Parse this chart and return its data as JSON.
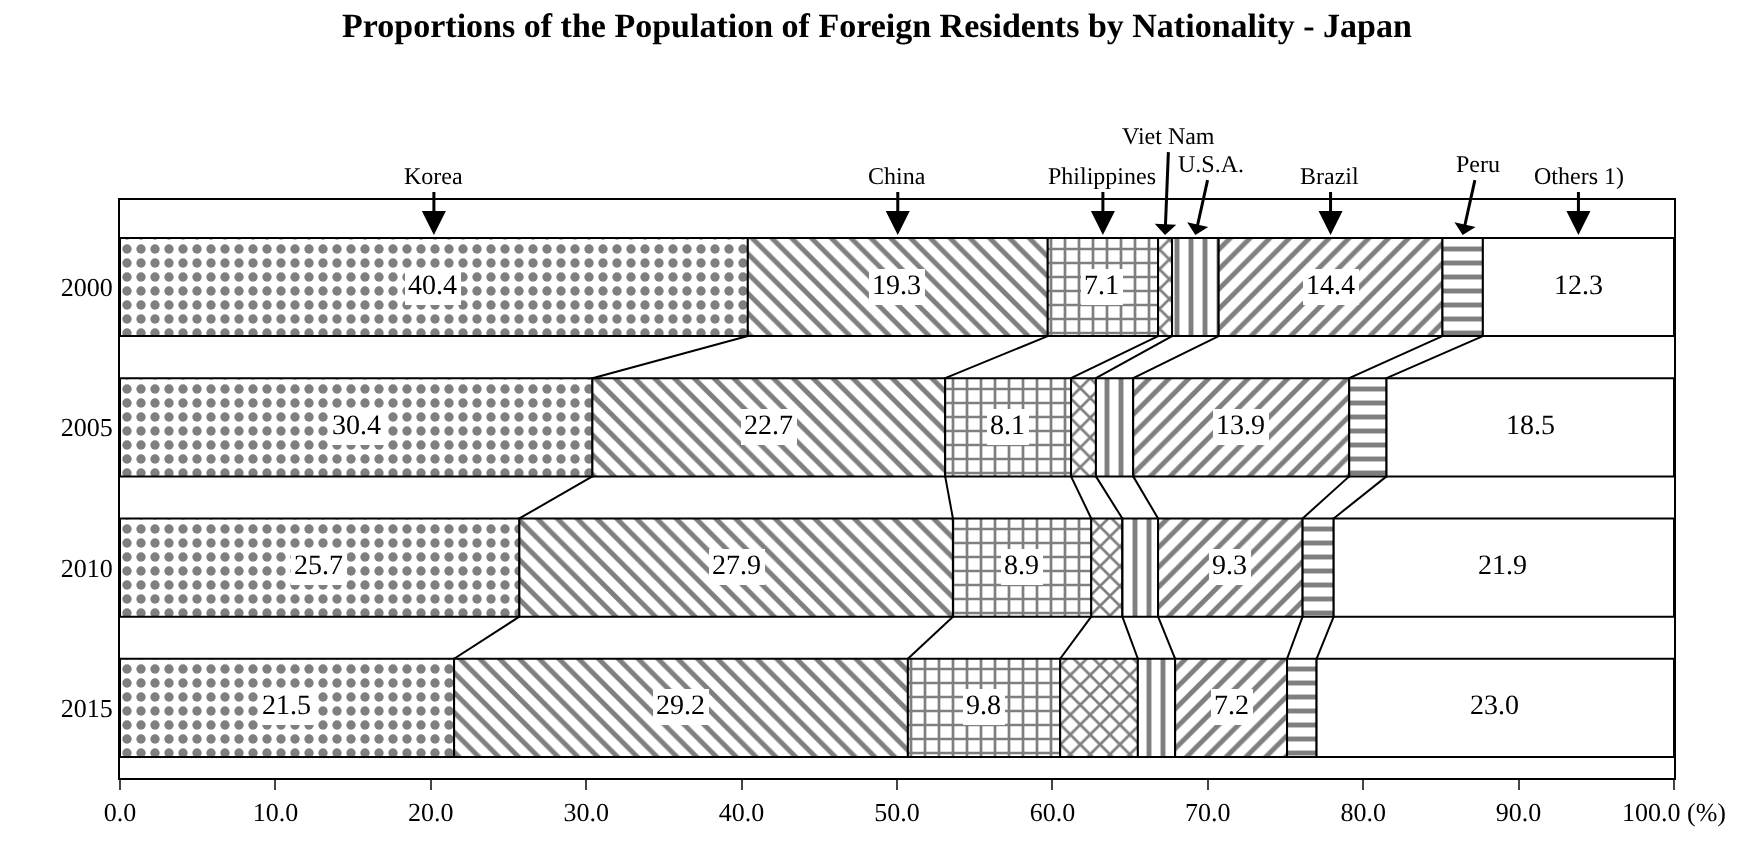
{
  "chart_data": {
    "type": "bar",
    "orientation": "horizontal",
    "stacked": true,
    "title": "Proportions of the Population of Foreign Residents by Nationality - Japan",
    "categories": [
      "2000",
      "2005",
      "2010",
      "2015"
    ],
    "series": [
      {
        "name": "Korea",
        "color": "#000000",
        "values": [
          40.4,
          30.4,
          25.7,
          21.5
        ],
        "value_labels": [
          "40.4",
          "30.4",
          "25.7",
          "21.5"
        ]
      },
      {
        "name": "China",
        "color": "#000000",
        "values": [
          19.3,
          22.7,
          27.9,
          29.2
        ],
        "value_labels": [
          "19.3",
          "22.7",
          "27.9",
          "29.2"
        ]
      },
      {
        "name": "Philippines",
        "color": "#000000",
        "values": [
          7.1,
          8.1,
          8.9,
          9.8
        ],
        "value_labels": [
          "7.1",
          "8.1",
          "8.9",
          "9.8"
        ]
      },
      {
        "name": "Viet Nam",
        "color": "#000000",
        "values": [
          0.9,
          1.6,
          2.0,
          5.0
        ]
      },
      {
        "name": "U.S.A.",
        "color": "#000000",
        "values": [
          3.0,
          2.4,
          2.3,
          2.4
        ]
      },
      {
        "name": "Brazil",
        "color": "#000000",
        "values": [
          14.4,
          13.9,
          9.3,
          7.2
        ],
        "value_labels": [
          "14.4",
          "13.9",
          "9.3",
          "7.2"
        ]
      },
      {
        "name": "Peru",
        "color": "#000000",
        "values": [
          2.6,
          2.4,
          2.0,
          1.9
        ]
      },
      {
        "name": "Others 1)",
        "color": "#ffffff",
        "values": [
          12.3,
          18.5,
          21.9,
          23.0
        ],
        "value_labels": [
          "12.3",
          "18.5",
          "21.9",
          "23.0"
        ]
      }
    ],
    "xlim": [
      0,
      100
    ],
    "xticks": [
      {
        "value": 0,
        "label": "0.0"
      },
      {
        "value": 10,
        "label": "10.0"
      },
      {
        "value": 20,
        "label": "20.0"
      },
      {
        "value": 30,
        "label": "30.0"
      },
      {
        "value": 40,
        "label": "40.0"
      },
      {
        "value": 50,
        "label": "50.0"
      },
      {
        "value": 60,
        "label": "60.0"
      },
      {
        "value": 70,
        "label": "70.0"
      },
      {
        "value": 80,
        "label": "80.0"
      },
      {
        "value": 90,
        "label": "90.0"
      },
      {
        "value": 100,
        "label": "100.0 (%)"
      }
    ]
  }
}
